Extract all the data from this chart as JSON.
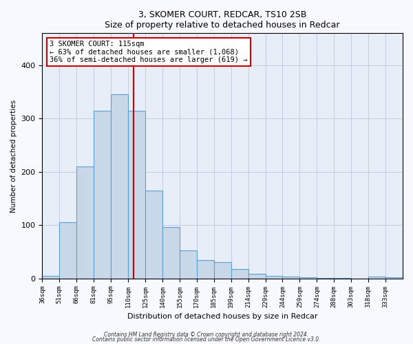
{
  "title": "3, SKOMER COURT, REDCAR, TS10 2SB",
  "subtitle": "Size of property relative to detached houses in Redcar",
  "xlabel": "Distribution of detached houses by size in Redcar",
  "ylabel": "Number of detached properties",
  "categories": [
    "36sqm",
    "51sqm",
    "66sqm",
    "81sqm",
    "95sqm",
    "110sqm",
    "125sqm",
    "140sqm",
    "155sqm",
    "170sqm",
    "185sqm",
    "199sqm",
    "214sqm",
    "229sqm",
    "244sqm",
    "259sqm",
    "274sqm",
    "288sqm",
    "303sqm",
    "318sqm",
    "333sqm"
  ],
  "values": [
    5,
    105,
    210,
    315,
    345,
    315,
    165,
    97,
    52,
    35,
    30,
    18,
    8,
    5,
    4,
    2,
    1,
    1,
    0,
    3,
    2
  ],
  "bar_color": "#c8d8e8",
  "bar_edge_color": "#5a9fd4",
  "line_color": "#cc0000",
  "annotation_line1": "3 SKOMER COURT: 115sqm",
  "annotation_line2": "← 63% of detached houses are smaller (1,068)",
  "annotation_line3": "36% of semi-detached houses are larger (619) →",
  "annotation_box_color": "#ffffff",
  "annotation_box_edge": "#cc0000",
  "footer1": "Contains HM Land Registry data © Crown copyright and database right 2024.",
  "footer2": "Contains public sector information licensed under the Open Government Licence v3.0.",
  "ylim": [
    0,
    460
  ],
  "grid_color": "#c0ccdd",
  "background_color": "#e8eef8",
  "fig_background": "#f8f8ff"
}
